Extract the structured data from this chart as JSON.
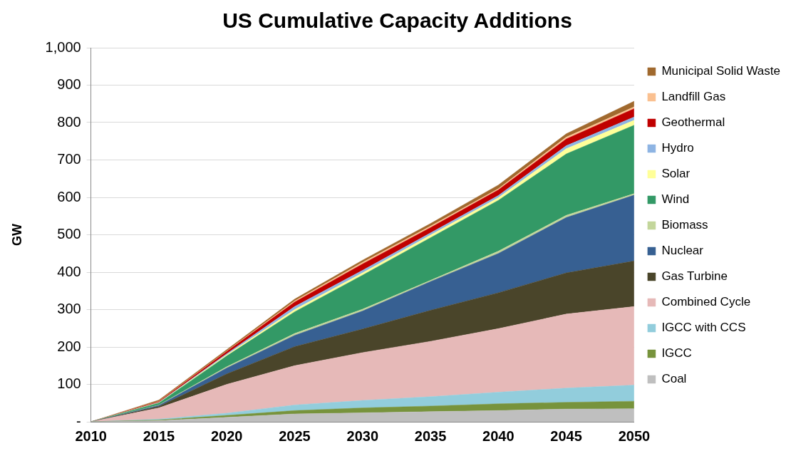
{
  "chart_data": {
    "type": "area",
    "title": "US Cumulative Capacity Additions",
    "ylabel": "GW",
    "stacked": true,
    "categories": [
      "2010",
      "2015",
      "2020",
      "2025",
      "2030",
      "2035",
      "2040",
      "2045",
      "2050"
    ],
    "series": [
      {
        "name": "Coal",
        "color": "#bfbfbf",
        "values": [
          0,
          3,
          12,
          21,
          24,
          27,
          30,
          34,
          35
        ]
      },
      {
        "name": "IGCC",
        "color": "#77933c",
        "values": [
          0,
          2,
          5,
          9,
          13,
          15,
          18,
          18,
          20
        ]
      },
      {
        "name": "IGCC with CCS",
        "color": "#92cddc",
        "values": [
          0,
          2,
          6,
          15,
          20,
          25,
          31,
          38,
          43
        ]
      },
      {
        "name": "Combined Cycle",
        "color": "#e6b9b8",
        "values": [
          0,
          30,
          77,
          105,
          128,
          148,
          170,
          198,
          210
        ]
      },
      {
        "name": "Gas Turbine",
        "color": "#4a452a",
        "values": [
          0,
          4,
          28,
          51,
          63,
          83,
          96,
          110,
          122
        ]
      },
      {
        "name": "Nuclear",
        "color": "#376092",
        "values": [
          0,
          3,
          16,
          30,
          48,
          77,
          105,
          148,
          176
        ]
      },
      {
        "name": "Biomass",
        "color": "#c3d69b",
        "values": [
          0,
          1,
          3,
          5,
          5,
          3,
          6,
          6,
          4
        ]
      },
      {
        "name": "Wind",
        "color": "#339966",
        "values": [
          0,
          5,
          29,
          58,
          91,
          114,
          136,
          164,
          183
        ]
      },
      {
        "name": "Solar",
        "color": "#ffff99",
        "values": [
          0,
          1,
          3,
          6,
          6,
          7,
          7,
          14,
          13
        ]
      },
      {
        "name": "Hydro",
        "color": "#8eb4e3",
        "values": [
          0,
          1,
          3,
          8,
          7,
          6,
          6,
          8,
          9
        ]
      },
      {
        "name": "Geothermal",
        "color": "#c00000",
        "values": [
          0,
          2,
          6,
          12,
          17,
          14,
          15,
          18,
          22
        ]
      },
      {
        "name": "Landfill Gas",
        "color": "#fac090",
        "values": [
          0,
          1,
          1,
          3,
          4,
          4,
          3,
          5,
          5
        ]
      },
      {
        "name": "Municipal Solid Waste",
        "color": "#a0692e",
        "values": [
          0,
          3,
          4,
          5,
          6,
          7,
          10,
          9,
          15
        ]
      }
    ],
    "ylim": [
      0,
      1000
    ],
    "yticks": [
      {
        "value": 0,
        "label": "-"
      },
      100,
      200,
      300,
      400,
      500,
      600,
      700,
      800,
      900,
      {
        "value": 1000,
        "label": "1,000"
      }
    ],
    "grid": "y",
    "legend": "right"
  }
}
